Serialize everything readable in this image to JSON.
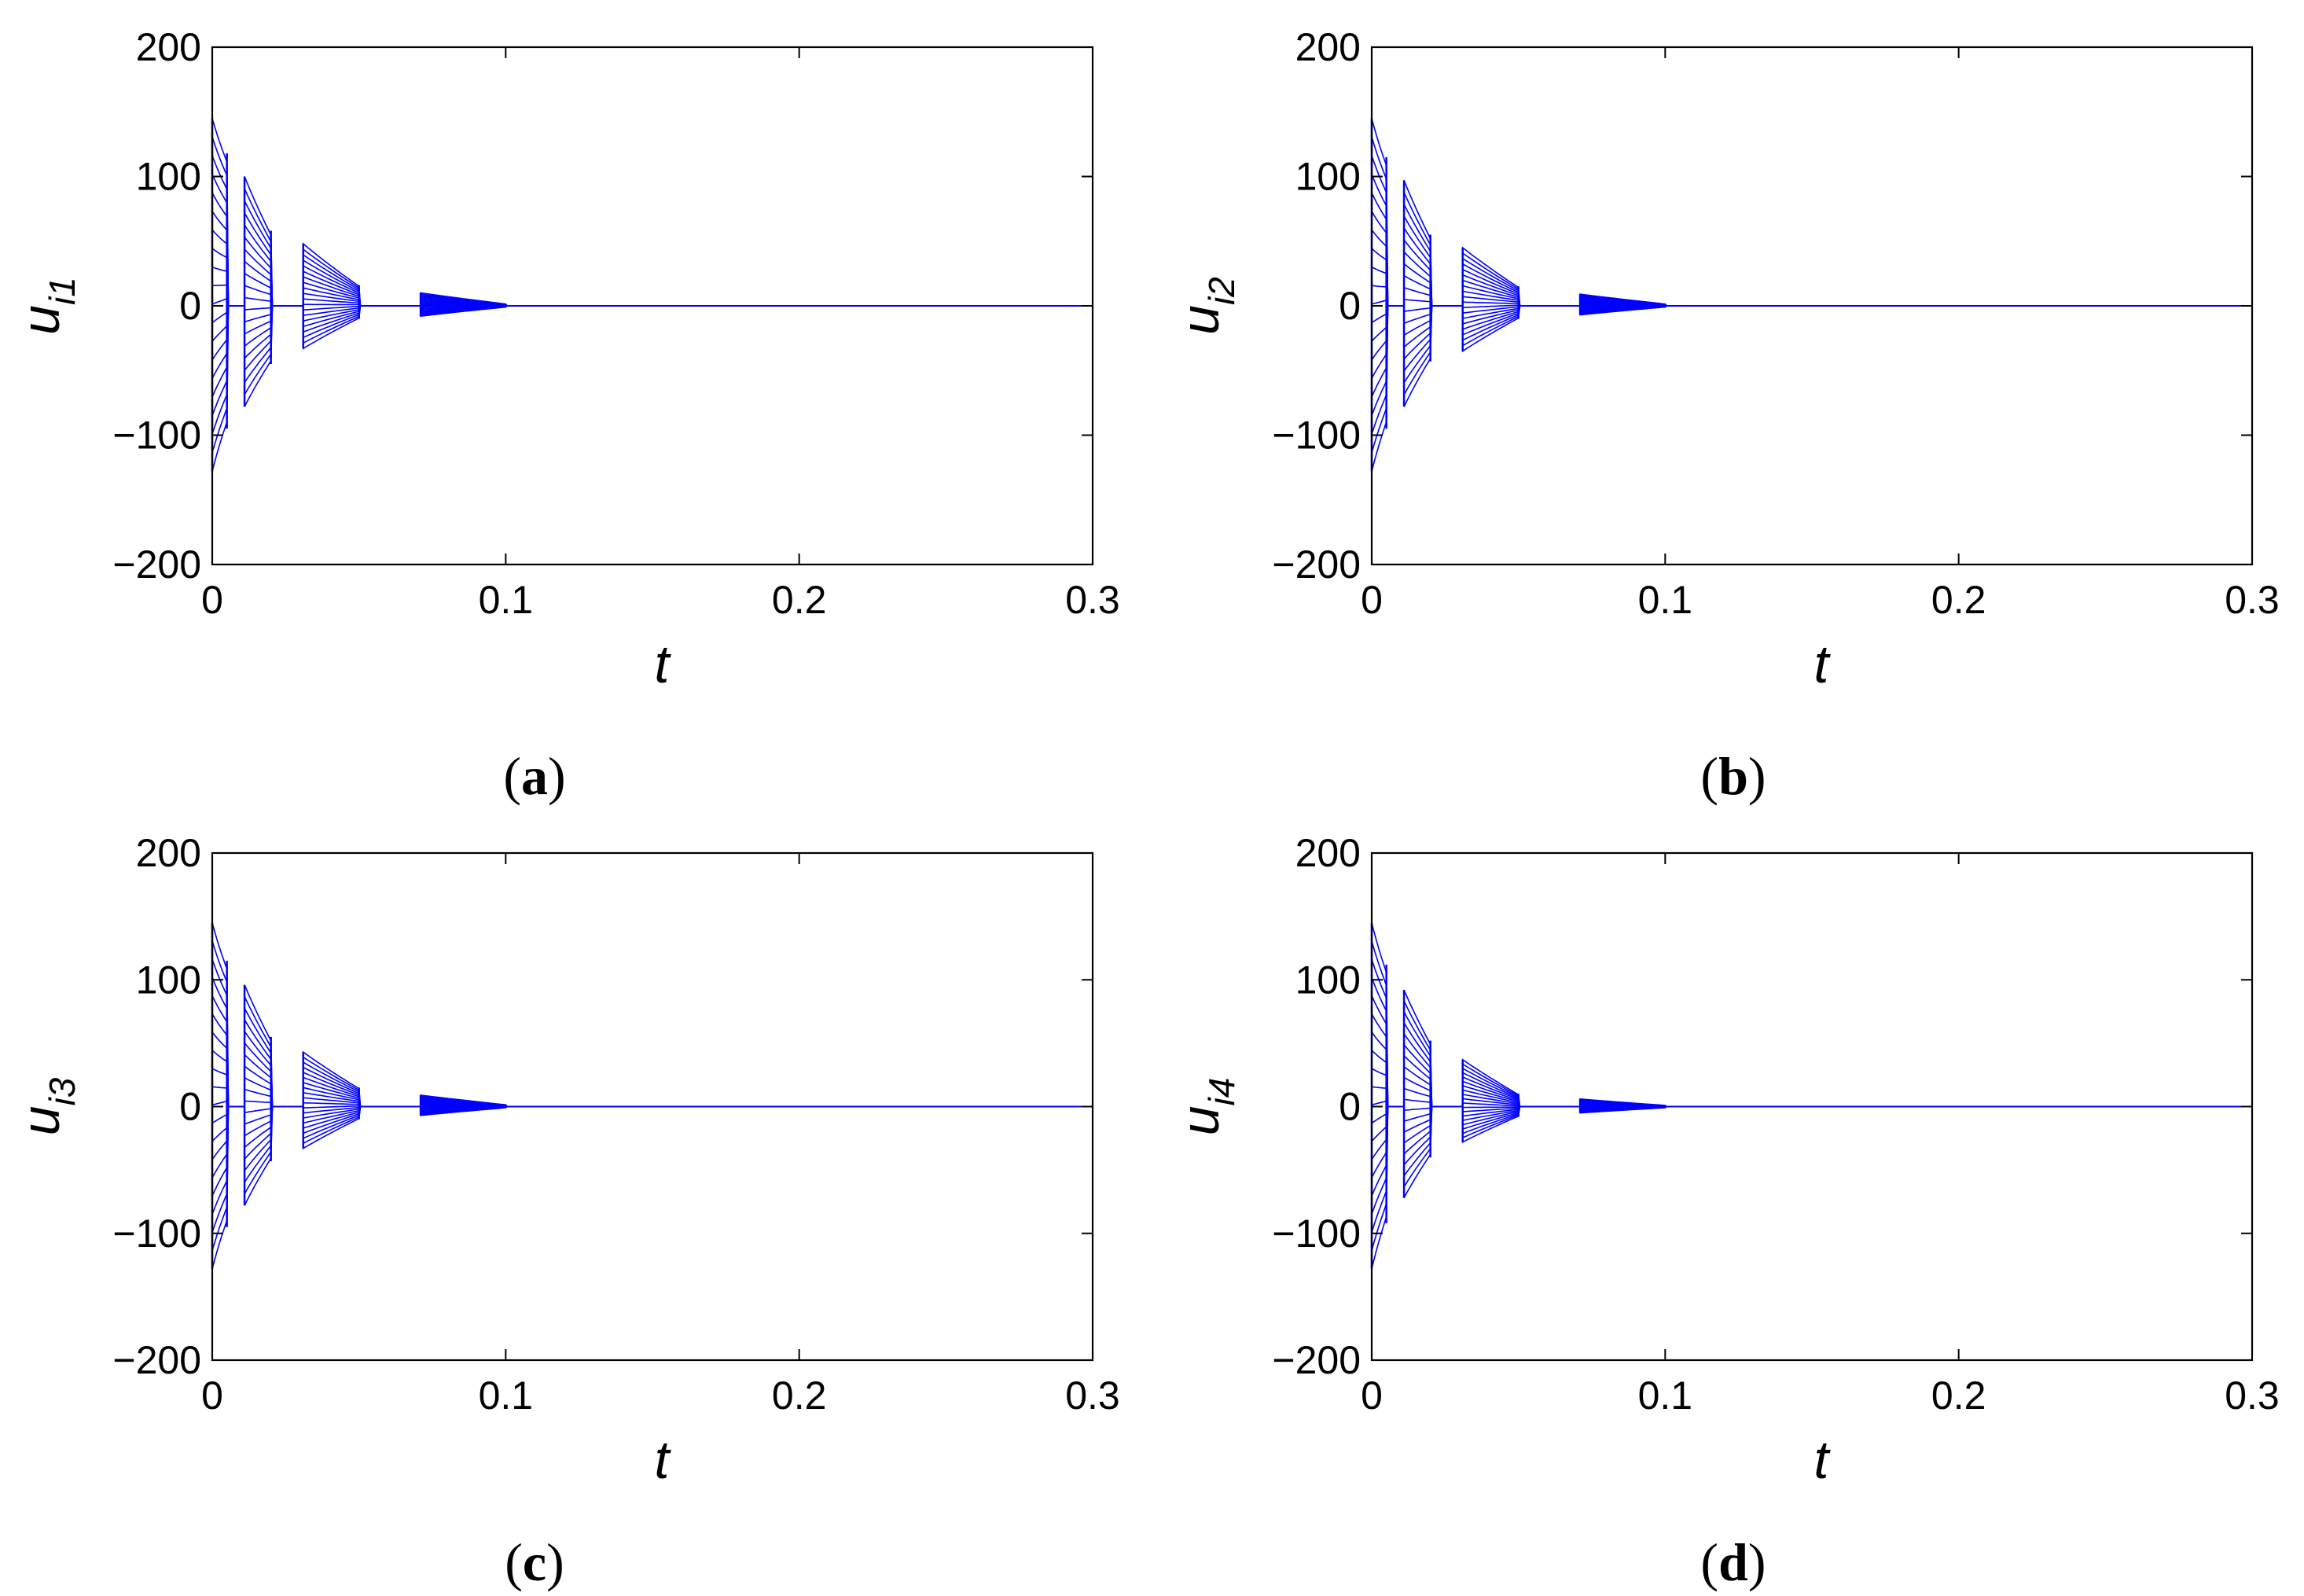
{
  "chart_data": [
    {
      "type": "line",
      "panel_label": "a",
      "xlabel": "t",
      "ylabel": "u",
      "ylabel_sub": "i1",
      "xlim": [
        0,
        0.3
      ],
      "ylim": [
        -200,
        200
      ],
      "xticks": [
        "0",
        "0.1",
        "0.2",
        "0.3"
      ],
      "yticks": [
        "200",
        "100",
        "0",
        "−100",
        "−200"
      ],
      "grid": false,
      "color": "#0000ff",
      "series_count": 20,
      "bursts": [
        {
          "t_start": 0.0,
          "t_end": 0.005,
          "max_start": 145,
          "max_end": 118,
          "min_start": -128,
          "min_end": -95
        },
        {
          "t_start": 0.011,
          "t_end": 0.02,
          "max_start": 100,
          "max_end": 58,
          "min_start": -78,
          "min_end": -45
        },
        {
          "t_start": 0.031,
          "t_end": 0.05,
          "max_start": 48,
          "max_end": 16,
          "min_start": -33,
          "min_end": -10
        },
        {
          "t_start": 0.071,
          "t_end": 0.1,
          "max_start": 10,
          "max_end": 1.5,
          "min_start": -8,
          "min_end": -1
        }
      ]
    },
    {
      "type": "line",
      "panel_label": "b",
      "xlabel": "t",
      "ylabel": "u",
      "ylabel_sub": "i2",
      "xlim": [
        0,
        0.3
      ],
      "ylim": [
        -200,
        200
      ],
      "xticks": [
        "0",
        "0.1",
        "0.2",
        "0.3"
      ],
      "yticks": [
        "200",
        "100",
        "0",
        "−100",
        "−200"
      ],
      "grid": false,
      "color": "#0000ff",
      "series_count": 20,
      "bursts": [
        {
          "t_start": 0.0,
          "t_end": 0.005,
          "max_start": 145,
          "max_end": 115,
          "min_start": -128,
          "min_end": -95
        },
        {
          "t_start": 0.011,
          "t_end": 0.02,
          "max_start": 97,
          "max_end": 55,
          "min_start": -78,
          "min_end": -43
        },
        {
          "t_start": 0.031,
          "t_end": 0.05,
          "max_start": 45,
          "max_end": 15,
          "min_start": -35,
          "min_end": -10
        },
        {
          "t_start": 0.071,
          "t_end": 0.1,
          "max_start": 9,
          "max_end": 1.5,
          "min_start": -7,
          "min_end": -1
        }
      ]
    },
    {
      "type": "line",
      "panel_label": "c",
      "xlabel": "t",
      "ylabel": "u",
      "ylabel_sub": "i3",
      "xlim": [
        0,
        0.3
      ],
      "ylim": [
        -200,
        200
      ],
      "xticks": [
        "0",
        "0.1",
        "0.2",
        "0.3"
      ],
      "yticks": [
        "200",
        "100",
        "0",
        "−100",
        "−200"
      ],
      "grid": false,
      "color": "#0000ff",
      "series_count": 20,
      "bursts": [
        {
          "t_start": 0.0,
          "t_end": 0.005,
          "max_start": 145,
          "max_end": 115,
          "min_start": -128,
          "min_end": -95
        },
        {
          "t_start": 0.011,
          "t_end": 0.02,
          "max_start": 96,
          "max_end": 55,
          "min_start": -78,
          "min_end": -43
        },
        {
          "t_start": 0.031,
          "t_end": 0.05,
          "max_start": 43,
          "max_end": 15,
          "min_start": -33,
          "min_end": -10
        },
        {
          "t_start": 0.071,
          "t_end": 0.1,
          "max_start": 9,
          "max_end": 1.5,
          "min_start": -7,
          "min_end": -1
        }
      ]
    },
    {
      "type": "line",
      "panel_label": "d",
      "xlabel": "t",
      "ylabel": "u",
      "ylabel_sub": "i4",
      "xlim": [
        0,
        0.3
      ],
      "ylim": [
        -200,
        200
      ],
      "xticks": [
        "0",
        "0.1",
        "0.2",
        "0.3"
      ],
      "yticks": [
        "200",
        "100",
        "0",
        "−100",
        "−200"
      ],
      "grid": false,
      "color": "#0000ff",
      "series_count": 20,
      "bursts": [
        {
          "t_start": 0.0,
          "t_end": 0.005,
          "max_start": 145,
          "max_end": 112,
          "min_start": -128,
          "min_end": -92
        },
        {
          "t_start": 0.011,
          "t_end": 0.02,
          "max_start": 92,
          "max_end": 52,
          "min_start": -72,
          "min_end": -40
        },
        {
          "t_start": 0.031,
          "t_end": 0.05,
          "max_start": 37,
          "max_end": 10,
          "min_start": -28,
          "min_end": -8
        },
        {
          "t_start": 0.071,
          "t_end": 0.1,
          "max_start": 6,
          "max_end": 1,
          "min_start": -5,
          "min_end": -1
        }
      ]
    }
  ]
}
